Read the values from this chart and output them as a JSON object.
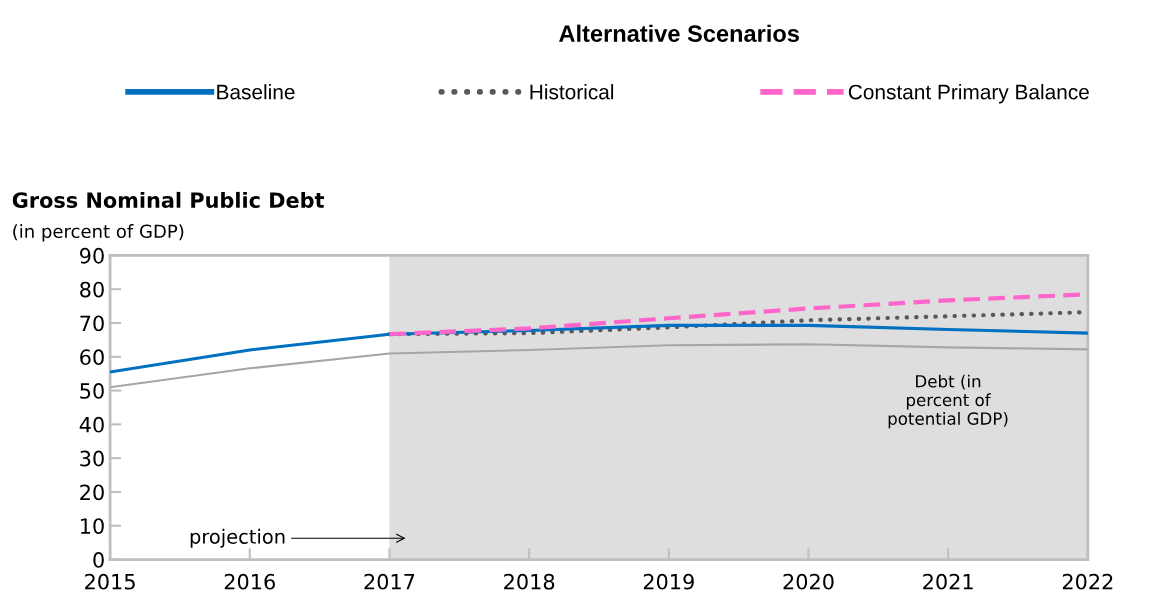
{
  "chart_data": {
    "type": "line",
    "title": "Alternative Scenarios",
    "subtitle": "Gross Nominal Public Debt",
    "ylabel": "(in percent of GDP)",
    "x": [
      2015,
      2016,
      2017,
      2018,
      2019,
      2020,
      2021,
      2022
    ],
    "series": [
      {
        "name": "Baseline",
        "color": "#0070c0",
        "line_style": "solid",
        "values": [
          55.5,
          62,
          66.7,
          67.8,
          69.3,
          69.3,
          68.1,
          67
        ]
      },
      {
        "name": "Historical",
        "color": "#595959",
        "line_style": "dotted",
        "values": [
          null,
          null,
          66.7,
          67,
          68.7,
          70.8,
          72,
          73.2
        ]
      },
      {
        "name": "Constant Primary Balance",
        "color": "#ff66cc",
        "line_style": "dashed",
        "values": [
          null,
          null,
          66.7,
          68.4,
          71.4,
          74.3,
          76.7,
          78.5
        ]
      },
      {
        "color": "#a6a6a6",
        "line_style": "solid",
        "values": [
          51,
          56.6,
          61,
          62,
          63.4,
          63.7,
          62.8,
          62.2
        ]
      }
    ],
    "bands": [
      {
        "axis": "x",
        "from": 2017,
        "to": 2022,
        "color": "#dedede"
      }
    ],
    "annotations": [
      "Debt (in\npercent of\npotential GDP)",
      "projection"
    ],
    "xlim": [
      2015,
      2022
    ],
    "xticks": [
      2015,
      2016,
      2017,
      2018,
      2019,
      2020,
      2021,
      2022
    ],
    "ylim": [
      0,
      90
    ],
    "yticks": [
      0,
      10,
      20,
      30,
      40,
      50,
      60,
      70,
      80,
      90
    ],
    "grid": false,
    "legend": "top",
    "marker": "none"
  }
}
